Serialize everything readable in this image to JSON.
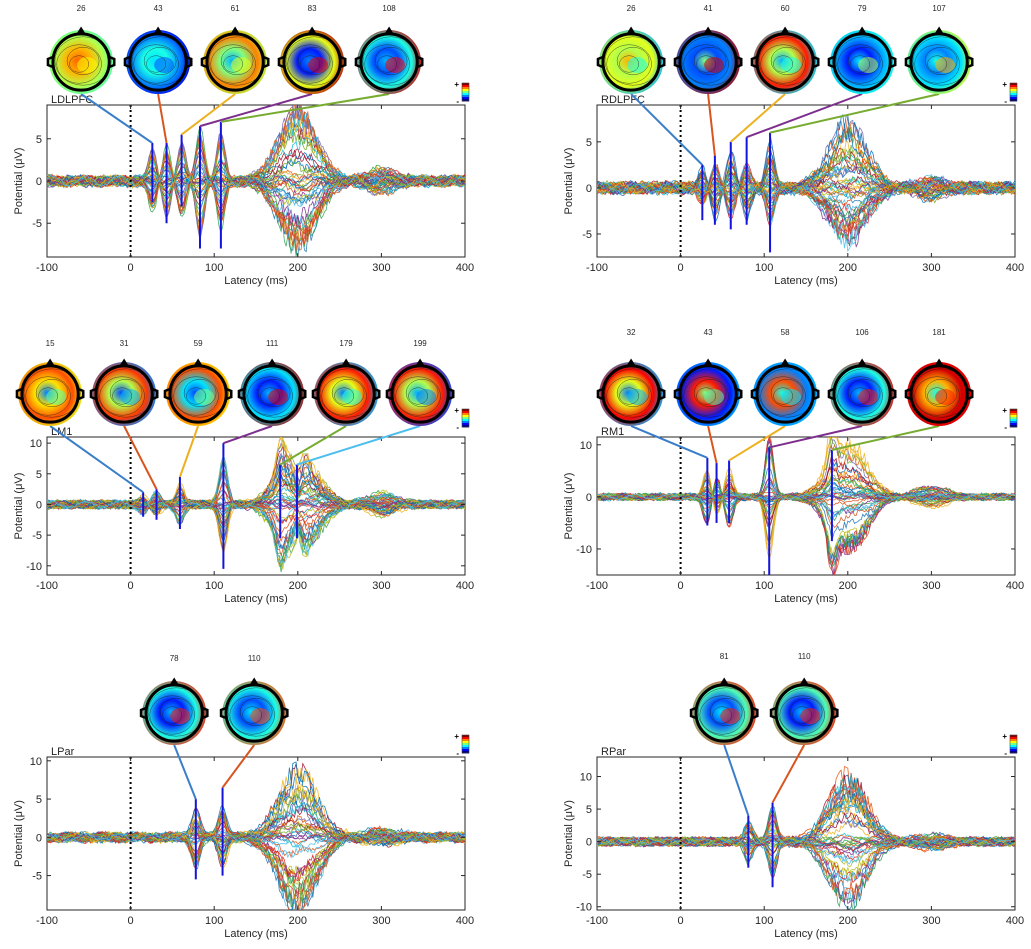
{
  "figure": {
    "xlabel": "Latency (ms)",
    "ylabel": "Potential (μV)",
    "colorbar": {
      "plus": "+",
      "minus": "-"
    }
  },
  "chart_data": [
    {
      "type": "line",
      "label": "LDLPFC",
      "xlim": [
        -100,
        400
      ],
      "ylim": [
        -9,
        9
      ],
      "xticks": [
        -100,
        0,
        100,
        200,
        300,
        400
      ],
      "yticks": [
        -5,
        0,
        5
      ],
      "stimulus_onset": 0,
      "traces": 48,
      "amp": 1.0,
      "late_amp": 1.15,
      "grid": false,
      "peaks": [
        {
          "latency": 26,
          "upper": 4.5,
          "lower": -2.5,
          "color": "#3a7ec9",
          "map": [
            0.45,
            0.55,
            0.7,
            0.78,
            0.62
          ]
        },
        {
          "latency": 43,
          "upper": 4.5,
          "lower": -5.0,
          "color": "#d9541e",
          "map": [
            0.1,
            0.25,
            0.4,
            0.35,
            0.2
          ]
        },
        {
          "latency": 61,
          "upper": 5.5,
          "lower": -3.0,
          "color": "#edb120",
          "map": [
            0.55,
            0.75,
            0.5,
            0.3,
            0.6
          ]
        },
        {
          "latency": 83,
          "upper": 6.5,
          "lower": -8.0,
          "color": "#7e2f8e",
          "map": [
            0.95,
            0.6,
            0.15,
            0.25,
            0.9
          ]
        },
        {
          "latency": 108,
          "upper": 7.0,
          "lower": -8.0,
          "color": "#77ac30",
          "map": [
            0.92,
            0.4,
            0.2,
            0.3,
            0.88
          ]
        }
      ]
    },
    {
      "type": "line",
      "label": "RDLPFC",
      "xlim": [
        -100,
        400
      ],
      "ylim": [
        -7.5,
        9
      ],
      "xticks": [
        -100,
        0,
        100,
        200,
        300,
        400
      ],
      "yticks": [
        -5,
        0,
        5
      ],
      "stimulus_onset": 0,
      "traces": 48,
      "amp": 0.85,
      "late_amp": 1.0,
      "grid": false,
      "peaks": [
        {
          "latency": 26,
          "upper": 2.5,
          "lower": -3.5,
          "color": "#3a7ec9",
          "map": [
            0.3,
            0.6,
            0.55,
            0.7,
            0.4
          ]
        },
        {
          "latency": 41,
          "upper": 3.5,
          "lower": -4.0,
          "color": "#d9541e",
          "map": [
            0.95,
            0.25,
            0.2,
            0.5,
            0.92
          ]
        },
        {
          "latency": 60,
          "upper": 5.0,
          "lower": -4.5,
          "color": "#edb120",
          "map": [
            0.35,
            0.85,
            0.55,
            0.3,
            0.4
          ]
        },
        {
          "latency": 79,
          "upper": 5.5,
          "lower": -4.0,
          "color": "#7e2f8e",
          "map": [
            0.4,
            0.3,
            0.15,
            0.35,
            0.55
          ]
        },
        {
          "latency": 107,
          "upper": 6.0,
          "lower": -7.0,
          "color": "#77ac30",
          "map": [
            0.6,
            0.35,
            0.25,
            0.4,
            0.7
          ]
        }
      ]
    },
    {
      "type": "line",
      "label": "LM1",
      "xlim": [
        -100,
        400
      ],
      "ylim": [
        -11.5,
        11
      ],
      "xticks": [
        -100,
        0,
        100,
        200,
        300,
        400
      ],
      "yticks": [
        -10,
        -5,
        0,
        5,
        10
      ],
      "stimulus_onset": 0,
      "traces": 48,
      "amp": 1.3,
      "late_amp": 1.3,
      "grid": false,
      "peaks": [
        {
          "latency": 15,
          "upper": 2.0,
          "lower": -2.0,
          "color": "#3a7ec9",
          "map": [
            0.6,
            0.8,
            0.65,
            0.25,
            0.45
          ]
        },
        {
          "latency": 31,
          "upper": 2.5,
          "lower": -2.5,
          "color": "#d9541e",
          "map": [
            0.25,
            0.82,
            0.55,
            0.2,
            0.3
          ]
        },
        {
          "latency": 59,
          "upper": 4.5,
          "lower": -4.0,
          "color": "#edb120",
          "map": [
            0.65,
            0.8,
            0.35,
            0.2,
            0.5
          ]
        },
        {
          "latency": 111,
          "upper": 10.0,
          "lower": -10.5,
          "color": "#7e2f8e",
          "map": [
            0.95,
            0.35,
            0.15,
            0.3,
            0.9
          ]
        },
        {
          "latency": 179,
          "upper": 6.5,
          "lower": -5.5,
          "color": "#77ac30",
          "map": [
            0.3,
            0.85,
            0.6,
            0.25,
            0.4
          ]
        },
        {
          "latency": 199,
          "upper": 6.5,
          "lower": -5.5,
          "color": "#4dbeee",
          "map": [
            0.2,
            0.85,
            0.55,
            0.3,
            0.25
          ]
        }
      ]
    },
    {
      "type": "line",
      "label": "RM1",
      "xlim": [
        -100,
        400
      ],
      "ylim": [
        -15,
        11.5
      ],
      "xticks": [
        -100,
        0,
        100,
        200,
        300,
        400
      ],
      "yticks": [
        -10,
        0,
        10
      ],
      "stimulus_onset": 0,
      "traces": 48,
      "amp": 1.5,
      "late_amp": 1.5,
      "grid": false,
      "peaks": [
        {
          "latency": 32,
          "upper": 7.5,
          "lower": -5.5,
          "color": "#3a7ec9",
          "map": [
            0.3,
            0.88,
            0.6,
            0.25,
            0.3
          ]
        },
        {
          "latency": 43,
          "upper": 6.5,
          "lower": -5.0,
          "color": "#d9541e",
          "map": [
            0.3,
            0.15,
            0.85,
            0.5,
            0.45
          ]
        },
        {
          "latency": 58,
          "upper": 7.0,
          "lower": -5.0,
          "color": "#edb120",
          "map": [
            0.3,
            0.25,
            0.8,
            0.4,
            0.35
          ]
        },
        {
          "latency": 106,
          "upper": 9.5,
          "lower": -15.0,
          "color": "#7e2f8e",
          "map": [
            0.9,
            0.4,
            0.15,
            0.3,
            0.85
          ]
        },
        {
          "latency": 181,
          "upper": 9.0,
          "lower": -8.5,
          "color": "#77ac30",
          "map": [
            0.9,
            0.92,
            0.7,
            0.4,
            0.85
          ]
        }
      ]
    },
    {
      "type": "line",
      "label": "LPar",
      "xlim": [
        -100,
        400
      ],
      "ylim": [
        -9.5,
        10.5
      ],
      "xticks": [
        -100,
        0,
        100,
        200,
        300,
        400
      ],
      "yticks": [
        -5,
        0,
        5,
        10
      ],
      "stimulus_onset": 0,
      "traces": 48,
      "amp": 0.65,
      "late_amp": 1.3,
      "grid": false,
      "peaks": [
        {
          "latency": 78,
          "upper": 5.0,
          "lower": -5.5,
          "color": "#3a7ec9",
          "map": [
            0.85,
            0.4,
            0.15,
            0.3,
            0.85
          ]
        },
        {
          "latency": 110,
          "upper": 6.5,
          "lower": -5.0,
          "color": "#d9541e",
          "map": [
            0.8,
            0.4,
            0.2,
            0.35,
            0.8
          ]
        }
      ]
    },
    {
      "type": "line",
      "label": "RPar",
      "xlim": [
        -100,
        400
      ],
      "ylim": [
        -10.5,
        13
      ],
      "xticks": [
        -100,
        0,
        100,
        200,
        300,
        400
      ],
      "yticks": [
        -10,
        -5,
        0,
        5,
        10
      ],
      "stimulus_onset": 0,
      "traces": 48,
      "amp": 0.75,
      "late_amp": 1.45,
      "grid": false,
      "peaks": [
        {
          "latency": 81,
          "upper": 4.0,
          "lower": -4.0,
          "color": "#3a7ec9",
          "map": [
            0.85,
            0.45,
            0.2,
            0.35,
            0.85
          ]
        },
        {
          "latency": 110,
          "upper": 6.0,
          "lower": -7.0,
          "color": "#d9541e",
          "map": [
            0.85,
            0.45,
            0.15,
            0.3,
            0.85
          ]
        }
      ]
    }
  ]
}
